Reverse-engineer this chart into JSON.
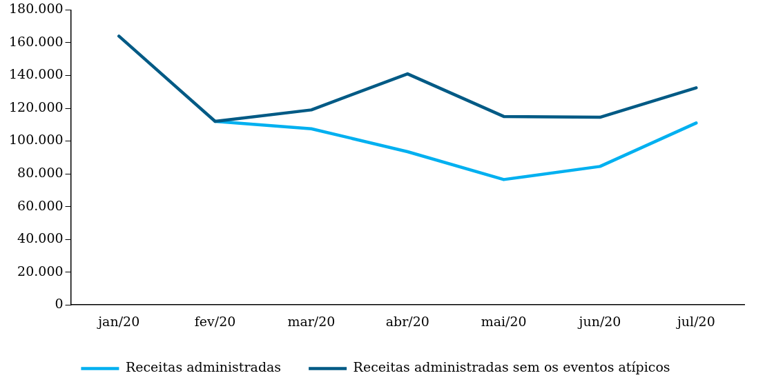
{
  "chart_data": {
    "type": "line",
    "categories": [
      "jan/20",
      "fev/20",
      "mar/20",
      "abr/20",
      "mai/20",
      "jun/20",
      "jul/20"
    ],
    "series": [
      {
        "name": "Receitas administradas",
        "color": "#00b0f0",
        "values": [
          null,
          112000,
          107500,
          93500,
          76500,
          84500,
          111000
        ]
      },
      {
        "name": "Receitas administradas sem os eventos atípicos",
        "color": "#005a85",
        "values": [
          164000,
          112000,
          119000,
          141000,
          115000,
          114500,
          132500
        ]
      }
    ],
    "ylim": [
      0,
      180000
    ],
    "yticks": [
      {
        "value": 0,
        "label": "0"
      },
      {
        "value": 20000,
        "label": "20.000"
      },
      {
        "value": 40000,
        "label": "40.000"
      },
      {
        "value": 60000,
        "label": "60.000"
      },
      {
        "value": 80000,
        "label": "80.000"
      },
      {
        "value": 100000,
        "label": "100.000"
      },
      {
        "value": 120000,
        "label": "120.000"
      },
      {
        "value": 140000,
        "label": "140.000"
      },
      {
        "value": 160000,
        "label": "160.000"
      },
      {
        "value": 180000,
        "label": "180.000"
      }
    ],
    "grid": false,
    "legend": "bottom",
    "marker": "none",
    "line_style": "solid"
  }
}
